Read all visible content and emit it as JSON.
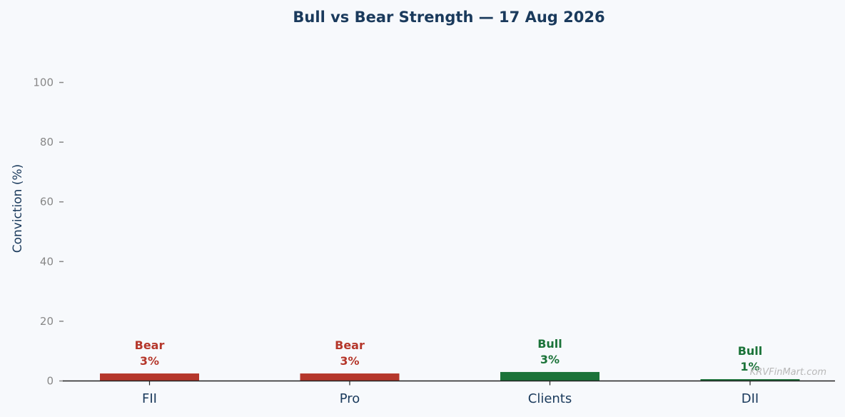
{
  "chart_data": {
    "type": "bar",
    "title": "Bull vs Bear Strength — 17 Aug 2026",
    "ylabel": "Conviction (%)",
    "xlabel": "",
    "ylim": [
      0,
      110
    ],
    "yticks": [
      0,
      20,
      40,
      60,
      80,
      100
    ],
    "categories": [
      "FII",
      "Pro",
      "Clients",
      "DII"
    ],
    "values": [
      2.5,
      2.5,
      3.0,
      0.6
    ],
    "sentiment": [
      "Bear",
      "Bear",
      "Bull",
      "Bull"
    ],
    "value_labels": [
      "3%",
      "3%",
      "3%",
      "1%"
    ],
    "grid": false,
    "legend": "none"
  },
  "colors": {
    "bear": "#b5372b",
    "bull": "#1b7339",
    "title": "#1a3a5c",
    "axis_label": "#1a3a5c",
    "tick_label": "#888888",
    "axis_line": "#222222",
    "watermark": "#b8b8b8",
    "background": "#f7f9fc"
  },
  "watermark": "KRVFinMart.com"
}
